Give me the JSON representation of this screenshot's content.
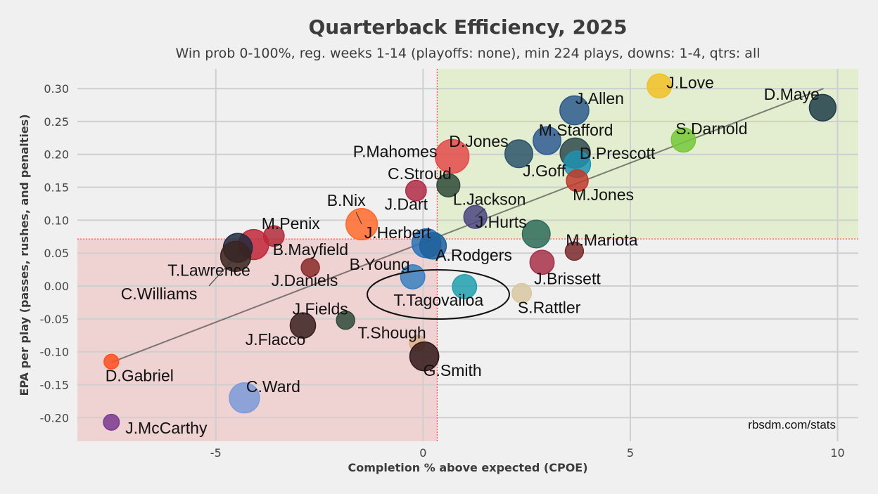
{
  "chart_data": {
    "type": "scatter",
    "title": "Quarterback Efficiency, 2025",
    "subtitle": "Win prob 0-100%, reg. weeks 1-14 (playoffs: none), min 224 plays, downs: 1-4, qtrs: all",
    "xlabel": "Completion % above expected (CPOE)",
    "ylabel": "EPA per play (passes, rushes, and penalties)",
    "xlim": [
      -8.34,
      10.5
    ],
    "ylim": [
      -0.236,
      0.33
    ],
    "x_ticks": [
      "-5",
      "0",
      "5",
      "10"
    ],
    "x_tick_values": [
      -5,
      0,
      5,
      10
    ],
    "y_ticks": [
      "0.30",
      "0.25",
      "0.20",
      "0.15",
      "0.10",
      "0.05",
      "0.00",
      "-0.05",
      "-0.10",
      "-0.15",
      "-0.20"
    ],
    "y_tick_values": [
      0.3,
      0.25,
      0.2,
      0.15,
      0.1,
      0.05,
      0.0,
      -0.05,
      -0.1,
      -0.15,
      -0.2
    ],
    "grid": true,
    "quadrant_cpoe_line": 0.34,
    "quadrant_epa_line": 0.0715,
    "quadrant_colors": {
      "good": "#e2eecf",
      "bad": "#efd2d2"
    },
    "trendline": {
      "x": [
        -7.52,
        9.66
      ],
      "y": [
        -0.116,
        0.3
      ]
    },
    "source": "rbsdm.com/stats",
    "points": [
      {
        "name": "J.Love",
        "x": 5.7,
        "y": 0.304,
        "size": 0.6,
        "color": "#f2bf25"
      },
      {
        "name": "D.Maye",
        "x": 9.64,
        "y": 0.271,
        "size": 0.7,
        "color": "#1f3d48"
      },
      {
        "name": "J.Allen",
        "x": 3.65,
        "y": 0.267,
        "size": 0.8,
        "color": "#2c5b8c"
      },
      {
        "name": "S.Darnold",
        "x": 6.28,
        "y": 0.222,
        "size": 0.6,
        "color": "#76c83a"
      },
      {
        "name": "M.Stafford",
        "x": 2.99,
        "y": 0.221,
        "size": 0.75,
        "color": "#2e5b93"
      },
      {
        "name": "D.Jones",
        "x": 2.31,
        "y": 0.201,
        "size": 0.75,
        "color": "#2c5468"
      },
      {
        "name": "D.Prescott",
        "x": 3.67,
        "y": 0.202,
        "size": 0.85,
        "color": "#2e4a4e"
      },
      {
        "name": "J.Goff",
        "x": 3.72,
        "y": 0.185,
        "size": 0.7,
        "color": "#1f92b0"
      },
      {
        "name": "M.Jones",
        "x": 3.72,
        "y": 0.16,
        "size": 0.5,
        "color": "#c0392b"
      },
      {
        "name": "P.Mahomes",
        "x": 0.7,
        "y": 0.197,
        "size": 1.0,
        "color": "#e44a4a"
      },
      {
        "name": "C.Stroud",
        "x": -0.17,
        "y": 0.145,
        "size": 0.45,
        "color": "#b02a45"
      },
      {
        "name": "J.Dart",
        "x": 0.61,
        "y": 0.153,
        "size": 0.55,
        "color": "#2f4a38"
      },
      {
        "name": "L.Jackson",
        "x": 1.26,
        "y": 0.105,
        "size": 0.55,
        "color": "#4a4580"
      },
      {
        "name": "J.Hurts",
        "x": 2.73,
        "y": 0.079,
        "size": 0.75,
        "color": "#2d6b58"
      },
      {
        "name": "J.Herbert",
        "x": 0.08,
        "y": 0.065,
        "size": 0.8,
        "color": "#2a72b8"
      },
      {
        "name": "A.Rodgers",
        "x": 0.24,
        "y": 0.061,
        "size": 0.7,
        "color": "#1f5f9a"
      },
      {
        "name": "B.Nix",
        "x": -1.48,
        "y": 0.094,
        "size": 0.9,
        "color": "#ff6a2a"
      },
      {
        "name": "M.Penix",
        "x": -3.6,
        "y": 0.076,
        "size": 0.45,
        "color": "#b22a3a"
      },
      {
        "name": "B.Mayfield",
        "x": -4.09,
        "y": 0.063,
        "size": 0.85,
        "color": "#c0283a"
      },
      {
        "name": "T.Lawrence",
        "x": -4.47,
        "y": 0.058,
        "size": 0.8,
        "color": "#1e2a40"
      },
      {
        "name": "C.Williams",
        "x": -4.52,
        "y": 0.045,
        "size": 0.85,
        "color": "#3a2420"
      },
      {
        "name": "J.Daniels",
        "x": -2.72,
        "y": 0.028,
        "size": 0.35,
        "color": "#8a2a2a"
      },
      {
        "name": "M.Mariota",
        "x": 3.65,
        "y": 0.053,
        "size": 0.35,
        "color": "#7a2a2a"
      },
      {
        "name": "J.Brissett",
        "x": 2.87,
        "y": 0.036,
        "size": 0.6,
        "color": "#a83048"
      },
      {
        "name": "B.Young",
        "x": -0.25,
        "y": 0.014,
        "size": 0.6,
        "color": "#3a80c0"
      },
      {
        "name": "T.Tagovailoa",
        "x": 1.0,
        "y": -0.001,
        "size": 0.6,
        "color": "#20a0b0"
      },
      {
        "name": "S.Rattler",
        "x": 2.38,
        "y": -0.011,
        "size": 0.4,
        "color": "#d8c8a0"
      },
      {
        "name": "J.Fields",
        "x": -1.87,
        "y": -0.052,
        "size": 0.35,
        "color": "#2f4a38"
      },
      {
        "name": "J.Flacco",
        "x": -2.9,
        "y": -0.06,
        "size": 0.65,
        "color": "#3a2020"
      },
      {
        "name": "T.Shough",
        "x": -0.14,
        "y": -0.087,
        "size": 0.25,
        "color": "#d8b090"
      },
      {
        "name": "G.Smith",
        "x": 0.03,
        "y": -0.107,
        "size": 0.8,
        "color": "#301818"
      },
      {
        "name": "D.Gabriel",
        "x": -7.52,
        "y": -0.115,
        "size": 0.2,
        "color": "#ff5020"
      },
      {
        "name": "C.Ward",
        "x": -4.31,
        "y": -0.17,
        "size": 0.85,
        "color": "#7b9bd8"
      },
      {
        "name": "J.McCarthy",
        "x": -7.52,
        "y": -0.207,
        "size": 0.25,
        "color": "#7a3a90"
      }
    ]
  }
}
